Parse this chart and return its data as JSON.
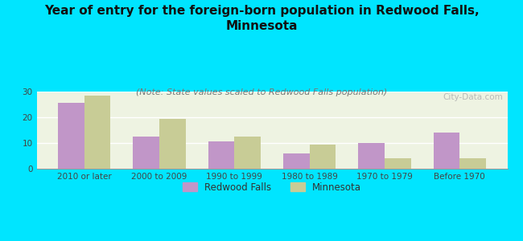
{
  "title": "Year of entry for the foreign-born population in Redwood Falls,\nMinnesota",
  "subtitle": "(Note: State values scaled to Redwood Falls population)",
  "categories": [
    "2010 or later",
    "2000 to 2009",
    "1990 to 1999",
    "1980 to 1989",
    "1970 to 1979",
    "Before 1970"
  ],
  "redwood_falls": [
    25.5,
    12.5,
    10.5,
    6.0,
    10.0,
    14.0
  ],
  "minnesota": [
    28.5,
    19.5,
    12.5,
    9.5,
    4.0,
    4.0
  ],
  "redwood_color": "#c196c8",
  "minnesota_color": "#c8cc96",
  "background_color": "#00e5ff",
  "plot_bg_gradient_top": "#e8f0d8",
  "plot_bg_gradient_bottom": "#f5f8ee",
  "ylim": [
    0,
    30
  ],
  "yticks": [
    0,
    10,
    20,
    30
  ],
  "bar_width": 0.35,
  "title_fontsize": 11,
  "subtitle_fontsize": 8,
  "tick_fontsize": 7.5,
  "legend_fontsize": 8.5,
  "watermark": "City-Data.com"
}
